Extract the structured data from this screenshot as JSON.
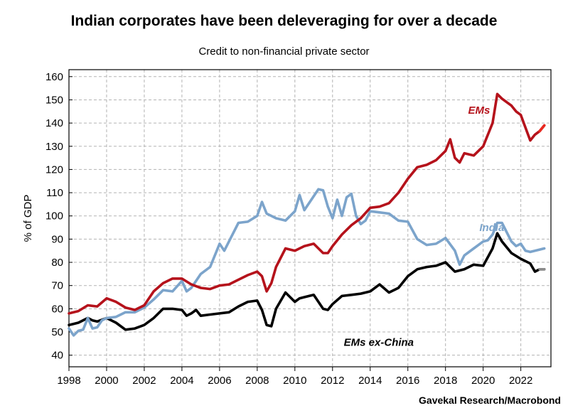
{
  "title": "Indian corporates have been deleveraging for over a decade",
  "subtitle": "Credit to non-financial private sector",
  "source": "Gavekal Research/Macrobond",
  "chart_data": {
    "type": "line",
    "ylabel": "% of GDP",
    "xlabel": "",
    "ylim": [
      35,
      163
    ],
    "xlim": [
      1998,
      2023.6
    ],
    "yticks": [
      40,
      50,
      60,
      70,
      80,
      90,
      100,
      110,
      120,
      130,
      140,
      150,
      160
    ],
    "xticks": [
      1998,
      2000,
      2002,
      2004,
      2006,
      2008,
      2010,
      2012,
      2014,
      2016,
      2018,
      2020,
      2022
    ],
    "grid": true,
    "series": [
      {
        "name": "EMs",
        "color": "#b5121b",
        "last_color": "#e8281f",
        "label_x": 2019.2,
        "label_y": 144,
        "x": [
          1998,
          1998.5,
          1999,
          1999.5,
          2000,
          2000.5,
          2001,
          2001.5,
          2002,
          2002.5,
          2003,
          2003.5,
          2004,
          2004.5,
          2005,
          2005.5,
          2006,
          2006.5,
          2007,
          2007.5,
          2008,
          2008.25,
          2008.5,
          2008.75,
          2009,
          2009.5,
          2010,
          2010.25,
          2010.5,
          2011,
          2011.5,
          2011.75,
          2012,
          2012.5,
          2013,
          2013.5,
          2014,
          2014.5,
          2015,
          2015.5,
          2016,
          2016.5,
          2017,
          2017.5,
          2018,
          2018.25,
          2018.5,
          2018.75,
          2019,
          2019.5,
          2020,
          2020.5,
          2020.75,
          2021,
          2021.5,
          2021.75,
          2022,
          2022.25,
          2022.5,
          2022.75,
          2023,
          2023.25
        ],
        "values": [
          58,
          59,
          61.5,
          61,
          64.5,
          63,
          60.5,
          59.5,
          61.5,
          67.5,
          71,
          73,
          73,
          70.5,
          69,
          68.5,
          70,
          70.5,
          72.5,
          74.5,
          76,
          74,
          67.5,
          71,
          78,
          86,
          85,
          86,
          87,
          88,
          84,
          84,
          87,
          92,
          96,
          99,
          103.5,
          104,
          105.5,
          110,
          116,
          121,
          122,
          124,
          128,
          133,
          125,
          123,
          127,
          126,
          130,
          140,
          152.5,
          150.5,
          147.5,
          145,
          143.5,
          138,
          132.5,
          135,
          136.5,
          139
        ]
      },
      {
        "name": "India",
        "color": "#7ca4cb",
        "last_color": "#7ca4cb",
        "label_x": 2019.8,
        "label_y": 93.5,
        "x": [
          1998,
          1998.25,
          1998.5,
          1998.75,
          1999,
          1999.25,
          1999.5,
          1999.75,
          2000,
          2000.5,
          2001,
          2001.5,
          2002,
          2002.5,
          2003,
          2003.5,
          2004,
          2004.25,
          2004.5,
          2004.75,
          2005,
          2005.5,
          2006,
          2006.25,
          2006.5,
          2007,
          2007.5,
          2008,
          2008.25,
          2008.5,
          2009,
          2009.5,
          2010,
          2010.25,
          2010.5,
          2011,
          2011.25,
          2011.5,
          2011.75,
          2012,
          2012.25,
          2012.5,
          2012.75,
          2013,
          2013.25,
          2013.5,
          2013.75,
          2014,
          2014.5,
          2015,
          2015.5,
          2016,
          2016.5,
          2017,
          2017.5,
          2018,
          2018.5,
          2018.75,
          2019,
          2019.5,
          2020,
          2020.25,
          2020.5,
          2020.75,
          2021,
          2021.5,
          2021.75,
          2022,
          2022.25,
          2022.5,
          2022.75,
          2023,
          2023.25
        ],
        "values": [
          51.5,
          48.5,
          50.5,
          51,
          56,
          51.5,
          52,
          55,
          56,
          56.5,
          58.5,
          58.5,
          60.5,
          64,
          68,
          67.5,
          72,
          67.5,
          69,
          72,
          75,
          78,
          88,
          85,
          89,
          97,
          97.5,
          100,
          106,
          101,
          99,
          98,
          102,
          109,
          102.5,
          108.5,
          111.5,
          111,
          104,
          99,
          107,
          100,
          108,
          109.5,
          100,
          96.5,
          98,
          102,
          101.5,
          101,
          98,
          97.5,
          90,
          87.5,
          88,
          90.5,
          85,
          79,
          83,
          86,
          89,
          89.5,
          92,
          97,
          97,
          89,
          87,
          88,
          85,
          84.5,
          85,
          85.5,
          86
        ]
      },
      {
        "name": "EMs ex-China",
        "color": "#000000",
        "last_color": "#8c8c8c",
        "label_x": 2012.6,
        "label_y": 44,
        "x": [
          1998,
          1998.5,
          1999,
          1999.25,
          1999.5,
          2000,
          2000.5,
          2001,
          2001.5,
          2002,
          2002.5,
          2003,
          2003.5,
          2004,
          2004.25,
          2004.5,
          2004.75,
          2005,
          2005.5,
          2006,
          2006.5,
          2007,
          2007.5,
          2008,
          2008.25,
          2008.5,
          2008.75,
          2009,
          2009.5,
          2010,
          2010.25,
          2010.5,
          2011,
          2011.5,
          2011.75,
          2012,
          2012.5,
          2013,
          2013.5,
          2014,
          2014.5,
          2015,
          2015.5,
          2016,
          2016.5,
          2017,
          2017.5,
          2018,
          2018.5,
          2019,
          2019.5,
          2020,
          2020.5,
          2020.75,
          2021,
          2021.5,
          2022,
          2022.5,
          2022.75,
          2023,
          2023.25
        ],
        "values": [
          53,
          54,
          56,
          55,
          54.5,
          56,
          54,
          51,
          51.5,
          53,
          56,
          60,
          60,
          59.5,
          57,
          58,
          59.5,
          57,
          57.5,
          58,
          58.5,
          61,
          63,
          63.5,
          59.5,
          53,
          52.5,
          60,
          67,
          63,
          64.5,
          65,
          66,
          60,
          59.5,
          62,
          65.5,
          66,
          66.5,
          67.5,
          70.5,
          67,
          69,
          74,
          77,
          78,
          78.5,
          80,
          76,
          77,
          79,
          78.5,
          86,
          92.5,
          89,
          84,
          81.5,
          79.5,
          76,
          77,
          77
        ]
      }
    ]
  }
}
